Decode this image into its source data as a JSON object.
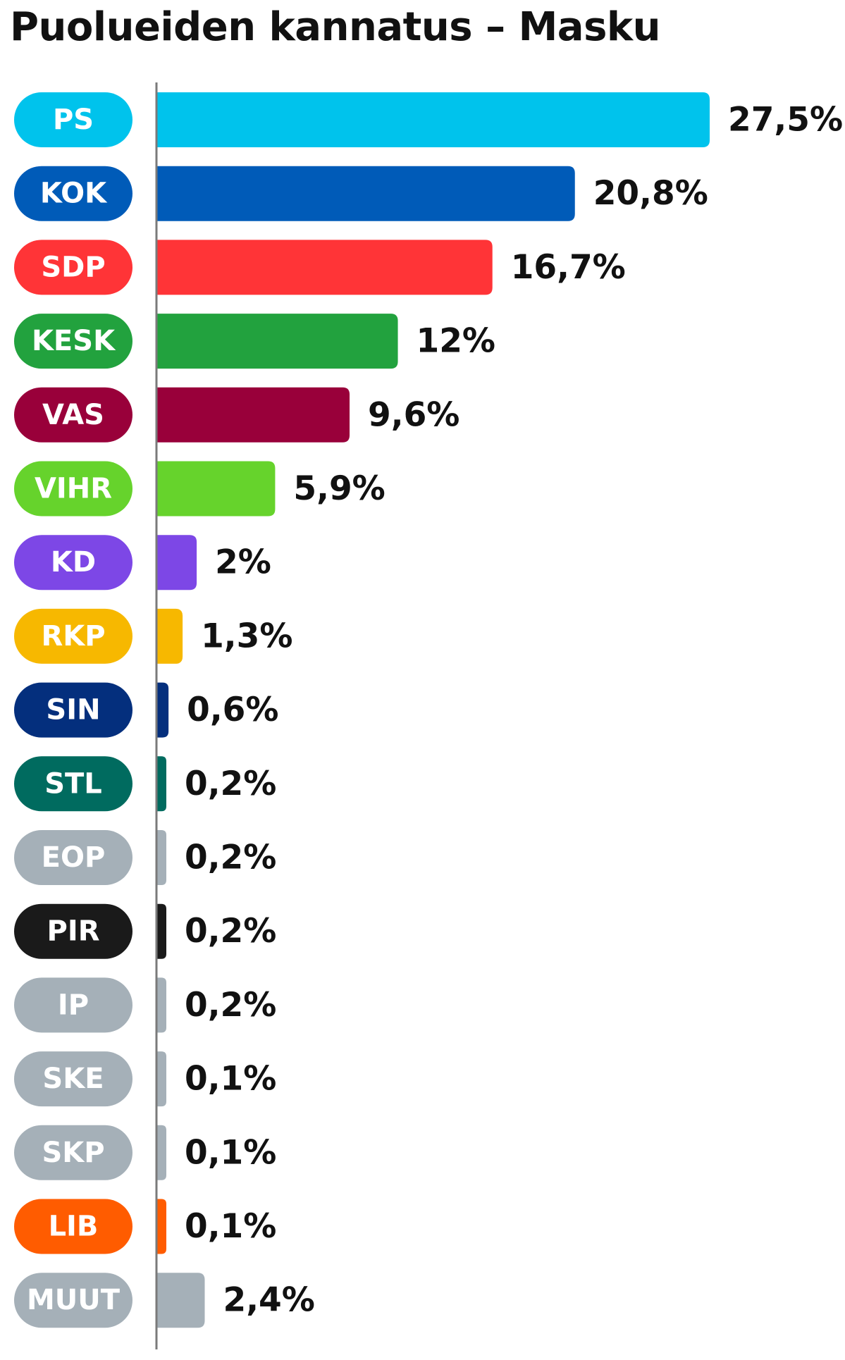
{
  "chart_data": {
    "type": "bar",
    "orientation": "horizontal",
    "title": "Puolueiden kannatus – Masku",
    "xlabel": "",
    "ylabel": "",
    "xlim": [
      0,
      27.5
    ],
    "grid": false,
    "legend": "none",
    "categories": [
      "PS",
      "KOK",
      "SDP",
      "KESK",
      "VAS",
      "VIHR",
      "KD",
      "RKP",
      "SIN",
      "STL",
      "EOP",
      "PIR",
      "IP",
      "SKE",
      "SKP",
      "LIB",
      "MUUT"
    ],
    "values": [
      27.5,
      20.8,
      16.7,
      12,
      9.6,
      5.9,
      2,
      1.3,
      0.6,
      0.2,
      0.2,
      0.2,
      0.2,
      0.1,
      0.1,
      0.1,
      2.4
    ],
    "value_labels": [
      "27,5%",
      "20,8%",
      "16,7%",
      "12%",
      "9,6%",
      "5,9%",
      "2%",
      "1,3%",
      "0,6%",
      "0,2%",
      "0,2%",
      "0,2%",
      "0,2%",
      "0,1%",
      "0,1%",
      "0,1%",
      "2,4%"
    ],
    "colors": [
      "#00c3ec",
      "#005bb8",
      "#ff3437",
      "#22a23e",
      "#99003a",
      "#66d32c",
      "#7d47e6",
      "#f7b800",
      "#042f7d",
      "#006b5f",
      "#a5b0b8",
      "#1a1a1a",
      "#a5b0b8",
      "#a5b0b8",
      "#a5b0b8",
      "#ff5c00",
      "#a5b0b8"
    ]
  }
}
